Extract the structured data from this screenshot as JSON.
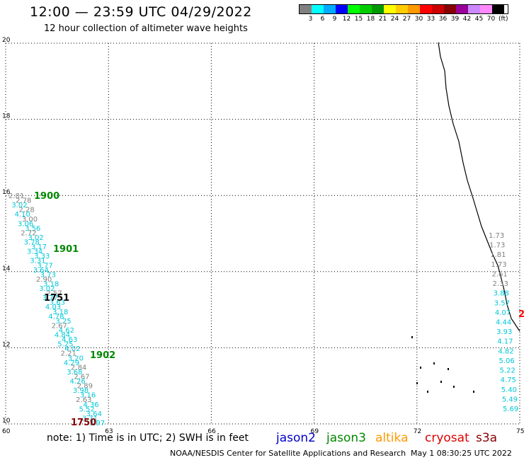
{
  "header": {
    "title": "12:00 — 23:59 UTC 04/29/2022",
    "subtitle": "12 hour collection of altimeter wave heights"
  },
  "legend": {
    "colors": [
      "#808080",
      "#00ffff",
      "#00aaff",
      "#0000ff",
      "#00ff00",
      "#00cc00",
      "#009900",
      "#ffff00",
      "#ffcc00",
      "#ff9900",
      "#ff0000",
      "#cc0000",
      "#880000",
      "#990099",
      "#cc88ff",
      "#ff88ff",
      "#000000"
    ],
    "labels": [
      "3",
      "6",
      "9",
      "12",
      "15",
      "18",
      "21",
      "24",
      "27",
      "30",
      "33",
      "36",
      "39",
      "42",
      "45",
      "70"
    ],
    "unit": "(ft)"
  },
  "map": {
    "lat_ticks": [
      "20",
      "18",
      "16",
      "14",
      "12",
      "10"
    ],
    "lon_ticks": [
      "60",
      "63",
      "66",
      "69",
      "72",
      "75"
    ],
    "lat_range": [
      10,
      20
    ],
    "lon_range": [
      60,
      75
    ],
    "grid": "dotted",
    "track_west": [
      {
        "v": "2.81",
        "c": "#808080"
      },
      {
        "v": "2.78",
        "c": "#808080"
      },
      {
        "v": "3.02",
        "c": "#00c8d8"
      },
      {
        "v": "2.28",
        "c": "#808080"
      },
      {
        "v": "4.10",
        "c": "#00c8d8"
      },
      {
        "v": "3.00",
        "c": "#808080"
      },
      {
        "v": "3.06",
        "c": "#00c8d8"
      },
      {
        "v": "3.56",
        "c": "#00c8d8"
      },
      {
        "v": "2.72",
        "c": "#808080"
      },
      {
        "v": "3.02",
        "c": "#00c8d8"
      },
      {
        "v": "3.78",
        "c": "#00c8d8"
      },
      {
        "v": "3.17",
        "c": "#00c8d8"
      },
      {
        "v": "3.34",
        "c": "#00c8d8"
      },
      {
        "v": "3.33",
        "c": "#00c8d8"
      },
      {
        "v": "3.31",
        "c": "#00c8d8"
      },
      {
        "v": "3.77",
        "c": "#00c8d8"
      },
      {
        "v": "3.64",
        "c": "#00c8d8"
      },
      {
        "v": "3.73",
        "c": "#00c8d8"
      },
      {
        "v": "2.90",
        "c": "#808080"
      },
      {
        "v": "3.18",
        "c": "#00c8d8"
      },
      {
        "v": "3.02",
        "c": "#00c8d8"
      },
      {
        "v": "2.57",
        "c": "#808080"
      },
      {
        "v": "3.77",
        "c": "#00c8d8"
      },
      {
        "v": "3.63",
        "c": "#00c8d8"
      },
      {
        "v": "4.03",
        "c": "#00c8d8"
      },
      {
        "v": "3.18",
        "c": "#00c8d8"
      },
      {
        "v": "4.78",
        "c": "#00c8d8"
      },
      {
        "v": "3.25",
        "c": "#00c8d8"
      },
      {
        "v": "2.67",
        "c": "#808080"
      },
      {
        "v": "4.62",
        "c": "#00c8d8"
      },
      {
        "v": "4.84",
        "c": "#00c8d8"
      },
      {
        "v": "4.63",
        "c": "#00c8d8"
      },
      {
        "v": "5.25",
        "c": "#00c8d8"
      },
      {
        "v": "4.02",
        "c": "#00c8d8"
      },
      {
        "v": "2.21",
        "c": "#808080"
      },
      {
        "v": "3.20",
        "c": "#00c8d8"
      },
      {
        "v": "4.29",
        "c": "#00c8d8"
      },
      {
        "v": "2.84",
        "c": "#808080"
      },
      {
        "v": "3.68",
        "c": "#00c8d8"
      },
      {
        "v": "2.67",
        "c": "#808080"
      },
      {
        "v": "4.26",
        "c": "#00c8d8"
      },
      {
        "v": "2.89",
        "c": "#808080"
      },
      {
        "v": "3.98",
        "c": "#00c8d8"
      },
      {
        "v": "3.16",
        "c": "#00c8d8"
      },
      {
        "v": "2.63",
        "c": "#808080"
      },
      {
        "v": "4.36",
        "c": "#00c8d8"
      },
      {
        "v": "5.52",
        "c": "#00c8d8"
      },
      {
        "v": "3.64",
        "c": "#00c8d8"
      },
      {
        "v": "3.71",
        "c": "#00c8d8"
      },
      {
        "v": "3.97",
        "c": "#00c8d8"
      }
    ],
    "track_east": [
      {
        "v": "1.73",
        "c": "#808080"
      },
      {
        "v": "1.73",
        "c": "#808080"
      },
      {
        "v": "1.81",
        "c": "#808080"
      },
      {
        "v": "1.73",
        "c": "#808080"
      },
      {
        "v": "2.61",
        "c": "#808080"
      },
      {
        "v": "2.33",
        "c": "#808080"
      },
      {
        "v": "3.88",
        "c": "#00c8d8"
      },
      {
        "v": "3.57",
        "c": "#00c8d8"
      },
      {
        "v": "4.07",
        "c": "#00c8d8"
      },
      {
        "v": "4.44",
        "c": "#00c8d8"
      },
      {
        "v": "3.93",
        "c": "#00c8d8"
      },
      {
        "v": "4.17",
        "c": "#00c8d8"
      },
      {
        "v": "4.82",
        "c": "#00c8d8"
      },
      {
        "v": "5.06",
        "c": "#00c8d8"
      },
      {
        "v": "5.22",
        "c": "#00c8d8"
      },
      {
        "v": "4.75",
        "c": "#00c8d8"
      },
      {
        "v": "5.40",
        "c": "#00c8d8"
      },
      {
        "v": "5.49",
        "c": "#00c8d8"
      },
      {
        "v": "5.69",
        "c": "#00c8d8"
      }
    ],
    "time_labels": [
      {
        "t": "1900",
        "c": "#008800"
      },
      {
        "t": "1901",
        "c": "#008800"
      },
      {
        "t": "1751",
        "c": "#000000"
      },
      {
        "t": "1902",
        "c": "#008800"
      },
      {
        "t": "1750",
        "c": "#880000"
      },
      {
        "t": "2",
        "c": "#ff0000"
      }
    ]
  },
  "footer": {
    "note": "note: 1) Time is in UTC; 2) SWH is in feet",
    "satellites": [
      {
        "name": "jason2",
        "color": "#0000cc"
      },
      {
        "name": "jason3",
        "color": "#008800"
      },
      {
        "name": "altika",
        "color": "#ff9900"
      },
      {
        "name": "cryosat",
        "color": "#dd0000"
      },
      {
        "name": "s3a",
        "color": "#880000"
      }
    ],
    "credit": "NOAA/NESDIS Center for Satellite Applications and Research",
    "timestamp": "May  1 08:30:25 UTC 2022"
  }
}
